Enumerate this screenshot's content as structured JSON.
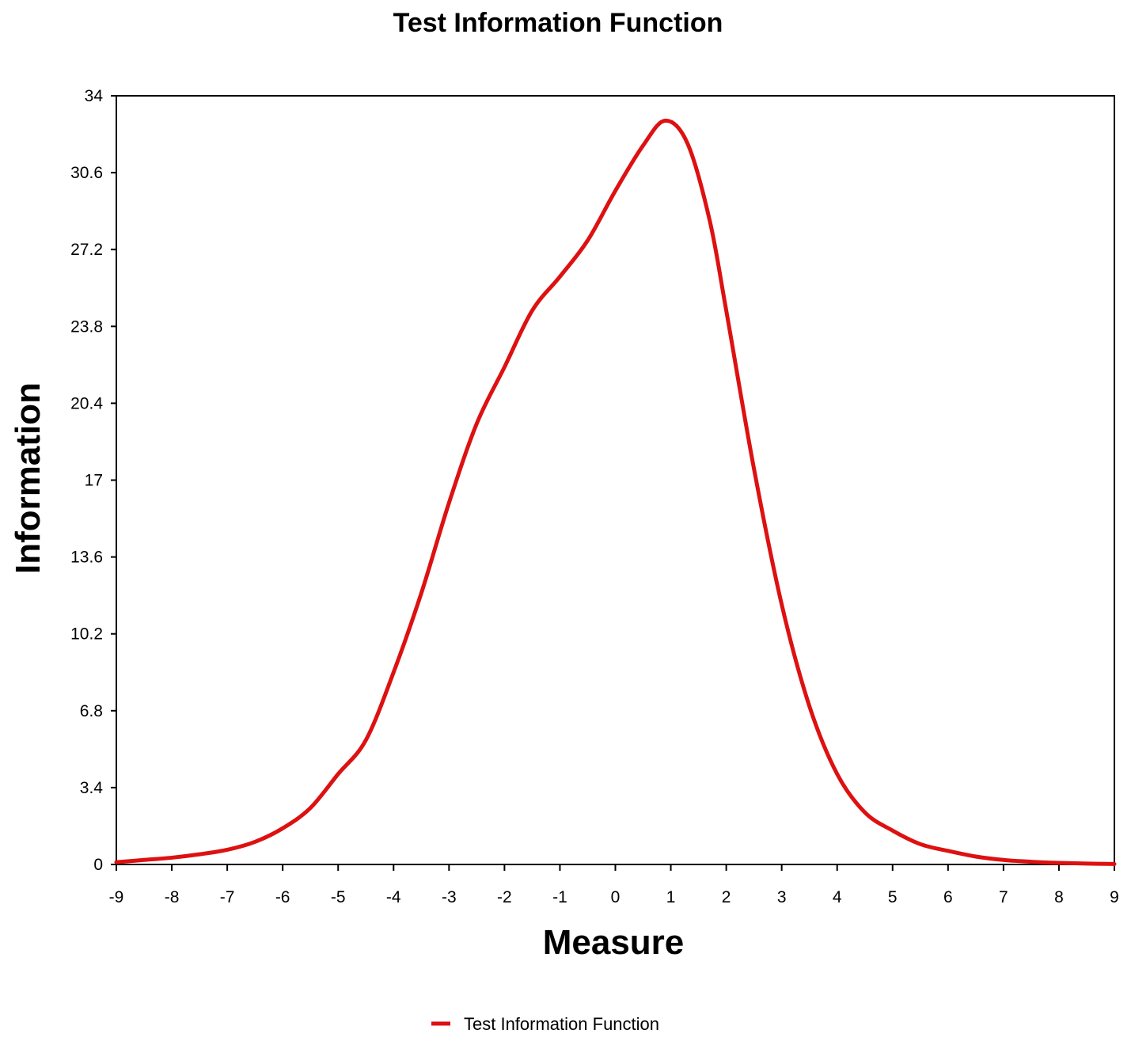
{
  "chart_data": {
    "type": "line",
    "title": "Test Information Function",
    "xlabel": "Measure",
    "ylabel": "Information",
    "xlim": [
      -9,
      9
    ],
    "ylim": [
      0,
      34
    ],
    "x_ticks": [
      "-9",
      "-8",
      "-7",
      "-6",
      "-5",
      "-4",
      "-3",
      "-2",
      "-1",
      "0",
      "1",
      "2",
      "3",
      "4",
      "5",
      "6",
      "7",
      "8",
      "9"
    ],
    "y_ticks": [
      "0",
      "3.4",
      "6.8",
      "10.2",
      "13.6",
      "17",
      "20.4",
      "23.8",
      "27.2",
      "30.6",
      "34"
    ],
    "grid": false,
    "legend_position": "bottom-center",
    "series": [
      {
        "name": "Test Information Function",
        "color": "#dd1111",
        "x": [
          -9,
          -8.5,
          -8,
          -7.5,
          -7,
          -6.5,
          -6,
          -5.5,
          -5,
          -4.5,
          -4,
          -3.5,
          -3,
          -2.5,
          -2,
          -1.5,
          -1,
          -0.5,
          0,
          0.5,
          0.9,
          1.3,
          1.7,
          2,
          2.5,
          3,
          3.5,
          4,
          4.5,
          5,
          5.5,
          6,
          6.5,
          7,
          7.5,
          8,
          8.5,
          9
        ],
        "y": [
          0.1,
          0.2,
          0.3,
          0.45,
          0.65,
          1.0,
          1.6,
          2.5,
          4.0,
          5.5,
          8.5,
          12.0,
          16.0,
          19.5,
          22.0,
          24.5,
          26.0,
          27.6,
          29.8,
          31.8,
          32.9,
          31.9,
          28.5,
          24.5,
          17.5,
          11.5,
          7.0,
          4.0,
          2.3,
          1.5,
          0.9,
          0.6,
          0.35,
          0.2,
          0.12,
          0.07,
          0.04,
          0.02
        ]
      }
    ]
  }
}
